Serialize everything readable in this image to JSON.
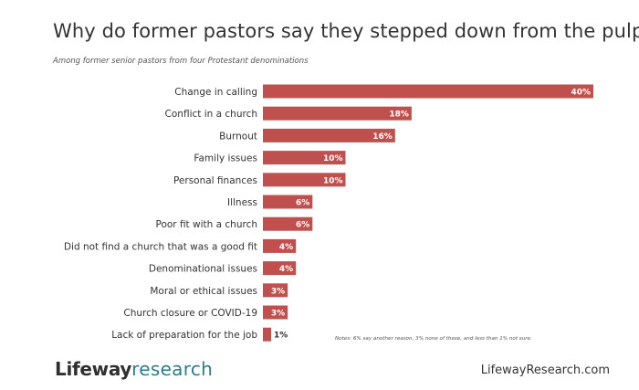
{
  "header": {
    "title": "Why do former pastors say they stepped down from the pulpit?",
    "subtitle": "Among former senior pastors from four Protestant denominations"
  },
  "chart_data": {
    "type": "bar",
    "orientation": "horizontal",
    "unit": "%",
    "xlim": [
      0,
      40
    ],
    "grid": false,
    "bar_color": "#c0504d",
    "categories": [
      "Change in calling",
      "Conflict in a church",
      "Burnout",
      "Family issues",
      "Personal finances",
      "Illness",
      "Poor fit with a church",
      "Did not find a church that was a good fit",
      "Denominational issues",
      "Moral or ethical issues",
      "Church closure or COVID-19",
      "Lack of preparation for the job"
    ],
    "values": [
      40,
      18,
      16,
      10,
      10,
      6,
      6,
      4,
      4,
      3,
      3,
      1
    ],
    "data_labels": [
      "40%",
      "18%",
      "16%",
      "10%",
      "10%",
      "6%",
      "6%",
      "4%",
      "4%",
      "3%",
      "3%",
      "1%"
    ]
  },
  "note": "Notes: 6% say another reason, 3% none of these, and less than 1% not sure.",
  "footer": {
    "logo_part1": "Lifeway",
    "logo_part2": "research",
    "website": "LifewayResearch.com"
  }
}
